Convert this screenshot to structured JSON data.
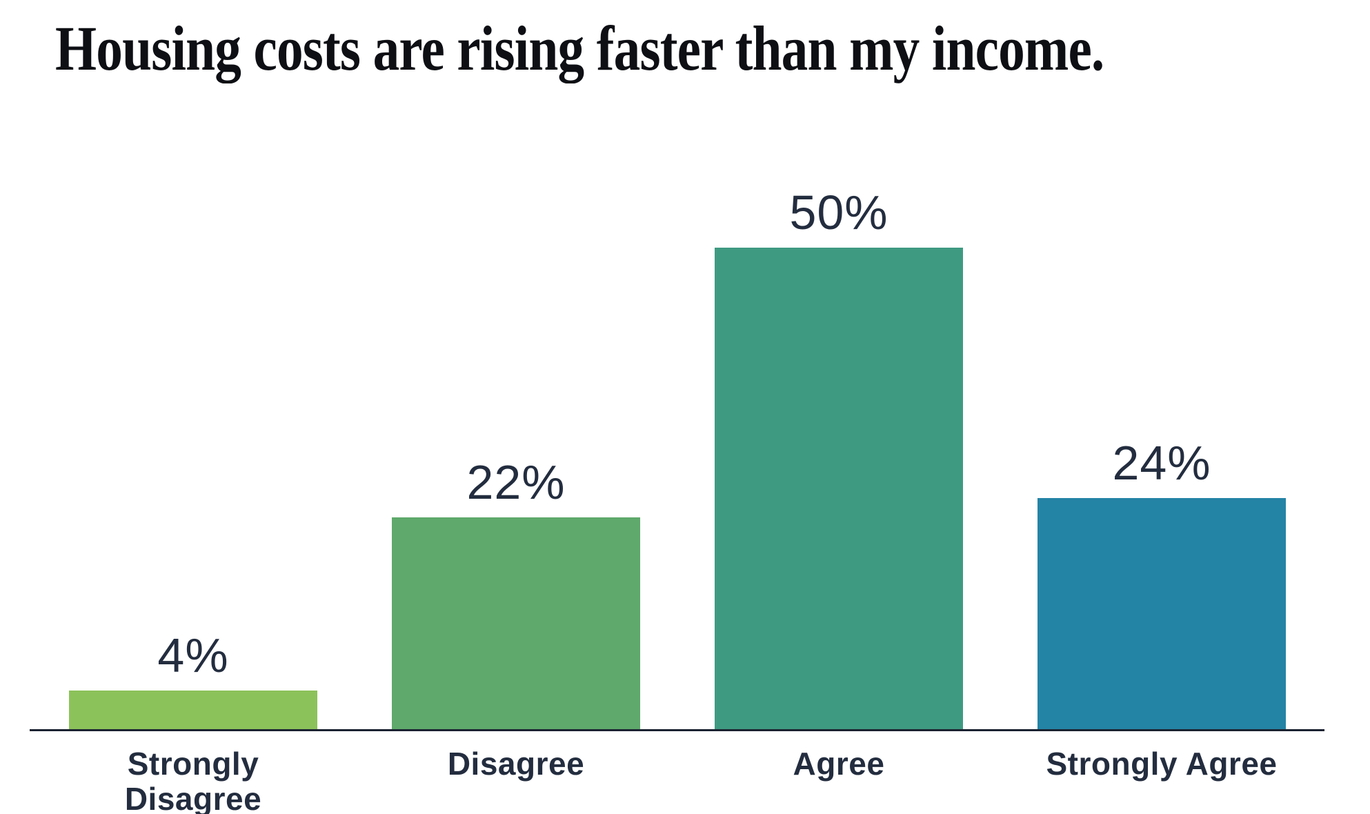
{
  "title": "Housing costs are rising faster than my income.",
  "chart_data": {
    "type": "bar",
    "title": "Housing costs are rising faster than my income.",
    "categories": [
      "Strongly Disagree",
      "Disagree",
      "Agree",
      "Strongly Agree"
    ],
    "values": [
      4,
      22,
      50,
      24
    ],
    "display_labels": [
      "4%",
      "22%",
      "50%",
      "24%"
    ],
    "bar_colors": [
      "#8CC25A",
      "#5EA96B",
      "#3F9A82",
      "#2484A6"
    ],
    "xlabel": "",
    "ylabel": "",
    "ylim": [
      0,
      50
    ],
    "grid": false,
    "legend": false,
    "value_label_position": "above-bars",
    "text_color": "#232D3F",
    "title_color": "#0d0f14",
    "axis_line_color": "#1A2230",
    "background_color": "#FFFFFF"
  }
}
